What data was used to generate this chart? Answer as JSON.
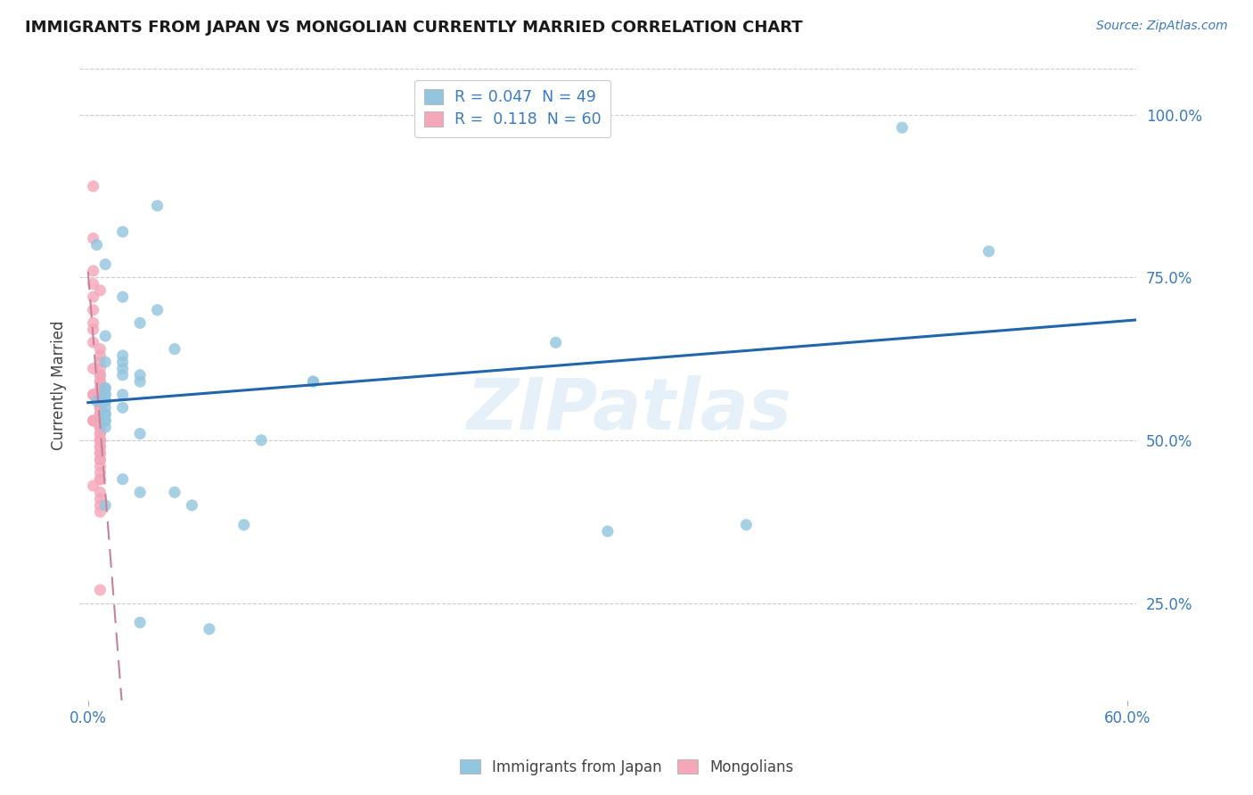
{
  "title": "IMMIGRANTS FROM JAPAN VS MONGOLIAN CURRENTLY MARRIED CORRELATION CHART",
  "source_text": "Source: ZipAtlas.com",
  "ylabel": "Currently Married",
  "xlim": [
    -0.005,
    0.605
  ],
  "ylim": [
    0.1,
    1.07
  ],
  "ytick_positions": [
    0.25,
    0.5,
    0.75,
    1.0
  ],
  "ytick_labels": [
    "25.0%",
    "50.0%",
    "75.0%",
    "100.0%"
  ],
  "legend_r1": "R = 0.047  N = 49",
  "legend_r2": "R =  0.118  N = 60",
  "color_blue": "#92c5de",
  "color_pink": "#f4a7b9",
  "line_blue": "#2166ac",
  "line_pink": "#c9819a",
  "watermark": "ZIPatlas",
  "japan_x": [
    0.02,
    0.04,
    0.005,
    0.01,
    0.02,
    0.04,
    0.01,
    0.03,
    0.02,
    0.05,
    0.01,
    0.02,
    0.02,
    0.03,
    0.02,
    0.03,
    0.01,
    0.01,
    0.01,
    0.01,
    0.02,
    0.01,
    0.01,
    0.005,
    0.01,
    0.02,
    0.01,
    0.01,
    0.01,
    0.01,
    0.01,
    0.13,
    0.13,
    0.27,
    0.47,
    0.52,
    0.38,
    0.3,
    0.01,
    0.03,
    0.1,
    0.09,
    0.02,
    0.03,
    0.05,
    0.01,
    0.06,
    0.07,
    0.03
  ],
  "japan_y": [
    0.82,
    0.86,
    0.8,
    0.77,
    0.72,
    0.7,
    0.66,
    0.68,
    0.63,
    0.64,
    0.62,
    0.62,
    0.61,
    0.6,
    0.6,
    0.59,
    0.58,
    0.58,
    0.57,
    0.57,
    0.57,
    0.56,
    0.56,
    0.56,
    0.56,
    0.55,
    0.55,
    0.54,
    0.54,
    0.53,
    0.53,
    0.59,
    0.59,
    0.65,
    0.98,
    0.79,
    0.37,
    0.36,
    0.52,
    0.51,
    0.5,
    0.37,
    0.44,
    0.42,
    0.42,
    0.4,
    0.4,
    0.21,
    0.22
  ],
  "mongol_x": [
    0.003,
    0.003,
    0.003,
    0.003,
    0.007,
    0.003,
    0.003,
    0.003,
    0.003,
    0.003,
    0.007,
    0.007,
    0.007,
    0.003,
    0.007,
    0.007,
    0.007,
    0.007,
    0.007,
    0.007,
    0.007,
    0.003,
    0.003,
    0.007,
    0.007,
    0.007,
    0.007,
    0.007,
    0.007,
    0.007,
    0.007,
    0.007,
    0.007,
    0.003,
    0.003,
    0.007,
    0.007,
    0.007,
    0.007,
    0.007,
    0.007,
    0.007,
    0.007,
    0.007,
    0.007,
    0.007,
    0.007,
    0.007,
    0.007,
    0.007,
    0.007,
    0.007,
    0.007,
    0.007,
    0.003,
    0.007,
    0.007,
    0.007,
    0.007,
    0.007
  ],
  "mongol_y": [
    0.89,
    0.81,
    0.76,
    0.74,
    0.73,
    0.72,
    0.7,
    0.68,
    0.67,
    0.65,
    0.64,
    0.63,
    0.62,
    0.61,
    0.61,
    0.6,
    0.6,
    0.59,
    0.59,
    0.58,
    0.58,
    0.57,
    0.57,
    0.57,
    0.57,
    0.56,
    0.56,
    0.55,
    0.55,
    0.55,
    0.54,
    0.54,
    0.54,
    0.53,
    0.53,
    0.53,
    0.52,
    0.52,
    0.52,
    0.51,
    0.51,
    0.5,
    0.5,
    0.5,
    0.49,
    0.49,
    0.48,
    0.48,
    0.47,
    0.47,
    0.46,
    0.45,
    0.44,
    0.44,
    0.43,
    0.42,
    0.41,
    0.4,
    0.39,
    0.27
  ]
}
